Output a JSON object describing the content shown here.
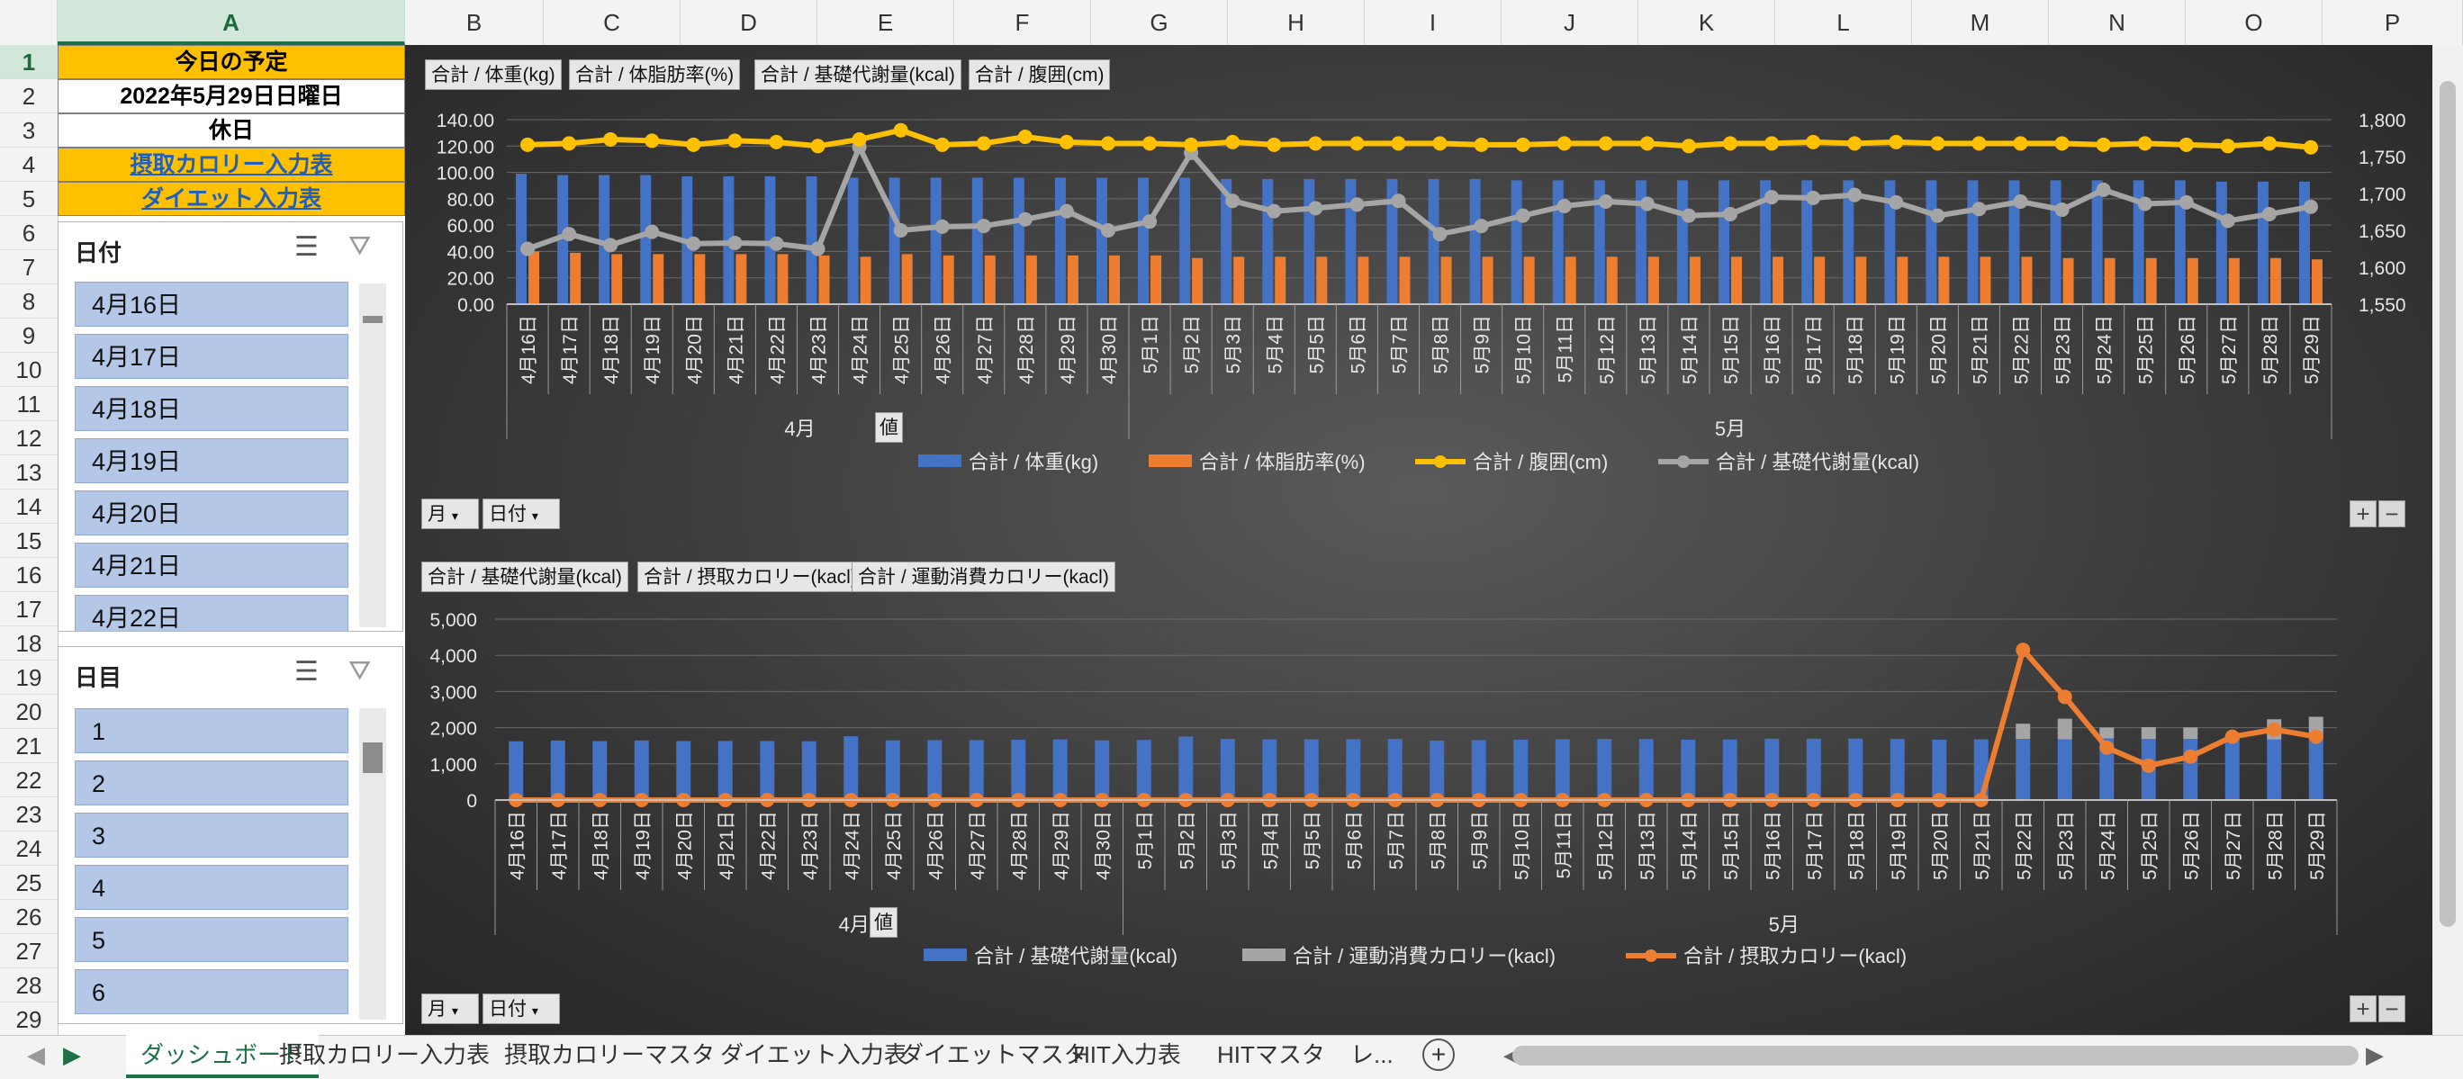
{
  "columns": [
    "A",
    "B",
    "C",
    "D",
    "E",
    "F",
    "G",
    "H",
    "I",
    "J",
    "K",
    "L",
    "M",
    "N",
    "O",
    "P"
  ],
  "rows": [
    "1",
    "2",
    "3",
    "4",
    "5",
    "6",
    "7",
    "8",
    "9",
    "10",
    "11",
    "12",
    "13",
    "14",
    "15",
    "16",
    "17",
    "18",
    "19",
    "20",
    "21",
    "22",
    "23",
    "24",
    "25",
    "26",
    "27",
    "28",
    "29"
  ],
  "cells": {
    "a1": "今日の予定",
    "a2": "2022年5月29日日曜日",
    "a3": "休日",
    "a4": "摂取カロリー入力表",
    "a5": "ダイエット入力表"
  },
  "slicer_date": {
    "title": "日付",
    "items": [
      "4月16日",
      "4月17日",
      "4月18日",
      "4月19日",
      "4月20日",
      "4月21日",
      "4月22日"
    ]
  },
  "slicer_day": {
    "title": "日目",
    "items": [
      "1",
      "2",
      "3",
      "4",
      "5",
      "6"
    ]
  },
  "colors": {
    "weight": "#4472c4",
    "fat": "#ed7d31",
    "waist": "#ffc000",
    "bmr": "#a5a5a5",
    "intake": "#ed7d31",
    "exercise": "#a5a5a5"
  },
  "chart1": {
    "field_buttons": [
      "合計 / 体重(kg)",
      "合計 / 体脂肪率(%)",
      "合計 / 基礎代謝量(kcal)",
      "合計 / 腹囲(cm)"
    ],
    "axis_buttons": [
      "月",
      "日付"
    ],
    "value_button": "値",
    "legend": [
      "合計 / 体重(kg)",
      "合計 / 体脂肪率(%)",
      "合計 / 腹囲(cm)",
      "合計 / 基礎代謝量(kcal)"
    ],
    "months": [
      "4月",
      "5月"
    ],
    "y_ticks": [
      "140.00",
      "120.00",
      "100.00",
      "80.00",
      "60.00",
      "40.00",
      "20.00",
      "0.00"
    ],
    "y2_ticks": [
      "1,800",
      "1,750",
      "1,700",
      "1,650",
      "1,600",
      "1,550"
    ]
  },
  "chart2": {
    "field_buttons": [
      "合計 / 基礎代謝量(kcal)",
      "合計 / 摂取カロリー(kacl)",
      "合計 / 運動消費カロリー(kacl)"
    ],
    "axis_buttons": [
      "月",
      "日付"
    ],
    "value_button": "値",
    "legend": [
      "合計 / 基礎代謝量(kcal)",
      "合計 / 運動消費カロリー(kacl)",
      "合計 / 摂取カロリー(kacl)"
    ],
    "months": [
      "4月",
      "5月"
    ],
    "y_ticks": [
      "5,000",
      "4,000",
      "3,000",
      "2,000",
      "1,000",
      "0"
    ]
  },
  "chart_data": [
    {
      "type": "bar",
      "categories": [
        "4月16日",
        "4月17日",
        "4月18日",
        "4月19日",
        "4月20日",
        "4月21日",
        "4月22日",
        "4月23日",
        "4月24日",
        "4月25日",
        "4月26日",
        "4月27日",
        "4月28日",
        "4月29日",
        "4月30日",
        "5月1日",
        "5月2日",
        "5月3日",
        "5月4日",
        "5月5日",
        "5月6日",
        "5月7日",
        "5月8日",
        "5月9日",
        "5月10日",
        "5月11日",
        "5月12日",
        "5月13日",
        "5月14日",
        "5月15日",
        "5月16日",
        "5月17日",
        "5月18日",
        "5月19日",
        "5月20日",
        "5月21日",
        "5月22日",
        "5月23日",
        "5月24日",
        "5月25日",
        "5月26日",
        "5月27日",
        "5月28日",
        "5月29日"
      ],
      "ylim": [
        0,
        140
      ],
      "y2lim": [
        1550,
        1800
      ],
      "series": [
        {
          "name": "合計 / 体重(kg)",
          "type": "bar",
          "axis": "primary",
          "values": [
            99,
            98,
            98,
            98,
            97,
            97,
            97,
            97,
            96,
            96,
            96,
            96,
            96,
            96,
            96,
            96,
            96,
            95,
            95,
            95,
            95,
            95,
            95,
            95,
            94,
            94,
            94,
            94,
            94,
            94,
            94,
            94,
            94,
            94,
            94,
            94,
            94,
            94,
            94,
            94,
            94,
            93,
            93,
            93
          ]
        },
        {
          "name": "合計 / 体脂肪率(%)",
          "type": "bar",
          "axis": "primary",
          "values": [
            40,
            39,
            38,
            38,
            38,
            38,
            38,
            37,
            36,
            38,
            37,
            37,
            37,
            37,
            37,
            37,
            35,
            36,
            36,
            36,
            36,
            36,
            36,
            36,
            36,
            36,
            36,
            36,
            36,
            36,
            36,
            36,
            36,
            36,
            36,
            36,
            36,
            35,
            35,
            35,
            35,
            35,
            35,
            34
          ]
        },
        {
          "name": "合計 / 腹囲(cm)",
          "type": "line",
          "axis": "primary",
          "values": [
            121,
            122,
            125,
            124,
            121,
            124,
            123,
            120,
            125,
            132,
            121,
            122,
            127,
            123,
            122,
            122,
            121,
            123,
            121,
            122,
            122,
            122,
            122,
            121,
            121,
            122,
            122,
            122,
            120,
            122,
            122,
            123,
            122,
            123,
            122,
            122,
            122,
            122,
            121,
            122,
            121,
            120,
            122,
            119
          ]
        },
        {
          "name": "合計 / 基礎代謝量(kcal)",
          "type": "line",
          "axis": "secondary",
          "values": [
            1625,
            1645,
            1630,
            1648,
            1632,
            1633,
            1632,
            1625,
            1763,
            1650,
            1655,
            1656,
            1665,
            1676,
            1650,
            1662,
            1755,
            1690,
            1676,
            1680,
            1685,
            1690,
            1645,
            1656,
            1670,
            1683,
            1689,
            1686,
            1670,
            1672,
            1695,
            1694,
            1698,
            1688,
            1670,
            1679,
            1689,
            1678,
            1705,
            1686,
            1688,
            1663,
            1672,
            1682
          ]
        }
      ]
    },
    {
      "type": "bar",
      "categories": [
        "4月16日",
        "4月17日",
        "4月18日",
        "4月19日",
        "4月20日",
        "4月21日",
        "4月22日",
        "4月23日",
        "4月24日",
        "4月25日",
        "4月26日",
        "4月27日",
        "4月28日",
        "4月29日",
        "4月30日",
        "5月1日",
        "5月2日",
        "5月3日",
        "5月4日",
        "5月5日",
        "5月6日",
        "5月7日",
        "5月8日",
        "5月9日",
        "5月10日",
        "5月11日",
        "5月12日",
        "5月13日",
        "5月14日",
        "5月15日",
        "5月16日",
        "5月17日",
        "5月18日",
        "5月19日",
        "5月20日",
        "5月21日",
        "5月22日",
        "5月23日",
        "5月24日",
        "5月25日",
        "5月26日",
        "5月27日",
        "5月28日",
        "5月29日"
      ],
      "ylim": [
        0,
        5000
      ],
      "stacked": true,
      "series": [
        {
          "name": "合計 / 基礎代謝量(kcal)",
          "type": "bar",
          "values": [
            1625,
            1645,
            1630,
            1648,
            1632,
            1633,
            1632,
            1625,
            1763,
            1650,
            1655,
            1656,
            1665,
            1676,
            1650,
            1662,
            1755,
            1690,
            1676,
            1680,
            1685,
            1690,
            1645,
            1656,
            1670,
            1683,
            1689,
            1686,
            1670,
            1672,
            1695,
            1694,
            1698,
            1688,
            1670,
            1679,
            1689,
            1678,
            1705,
            1686,
            1688,
            1663,
            1672,
            1682
          ]
        },
        {
          "name": "合計 / 運動消費カロリー(kacl)",
          "type": "bar",
          "values": [
            0,
            0,
            0,
            0,
            0,
            0,
            0,
            0,
            0,
            0,
            0,
            0,
            0,
            0,
            0,
            0,
            0,
            0,
            0,
            0,
            0,
            0,
            0,
            0,
            0,
            0,
            0,
            0,
            0,
            0,
            0,
            0,
            0,
            0,
            0,
            0,
            420,
            570,
            300,
            330,
            320,
            130,
            560,
            620
          ]
        },
        {
          "name": "合計 / 摂取カロリー(kacl)",
          "type": "line",
          "values": [
            0,
            0,
            0,
            0,
            0,
            0,
            0,
            0,
            0,
            0,
            0,
            0,
            0,
            0,
            0,
            0,
            0,
            0,
            0,
            0,
            0,
            0,
            0,
            0,
            0,
            0,
            0,
            0,
            0,
            0,
            0,
            0,
            0,
            0,
            0,
            0,
            4150,
            2850,
            1450,
            950,
            1200,
            1750,
            1950,
            1750
          ]
        }
      ]
    }
  ],
  "sheet_tabs": [
    "ダッシュボード",
    "摂取カロリー入力表",
    "摂取カロリーマスタ",
    "ダイエット入力表",
    "ダイエットマスタ",
    "HIT入力表",
    "HITマスタ",
    "レ..."
  ]
}
